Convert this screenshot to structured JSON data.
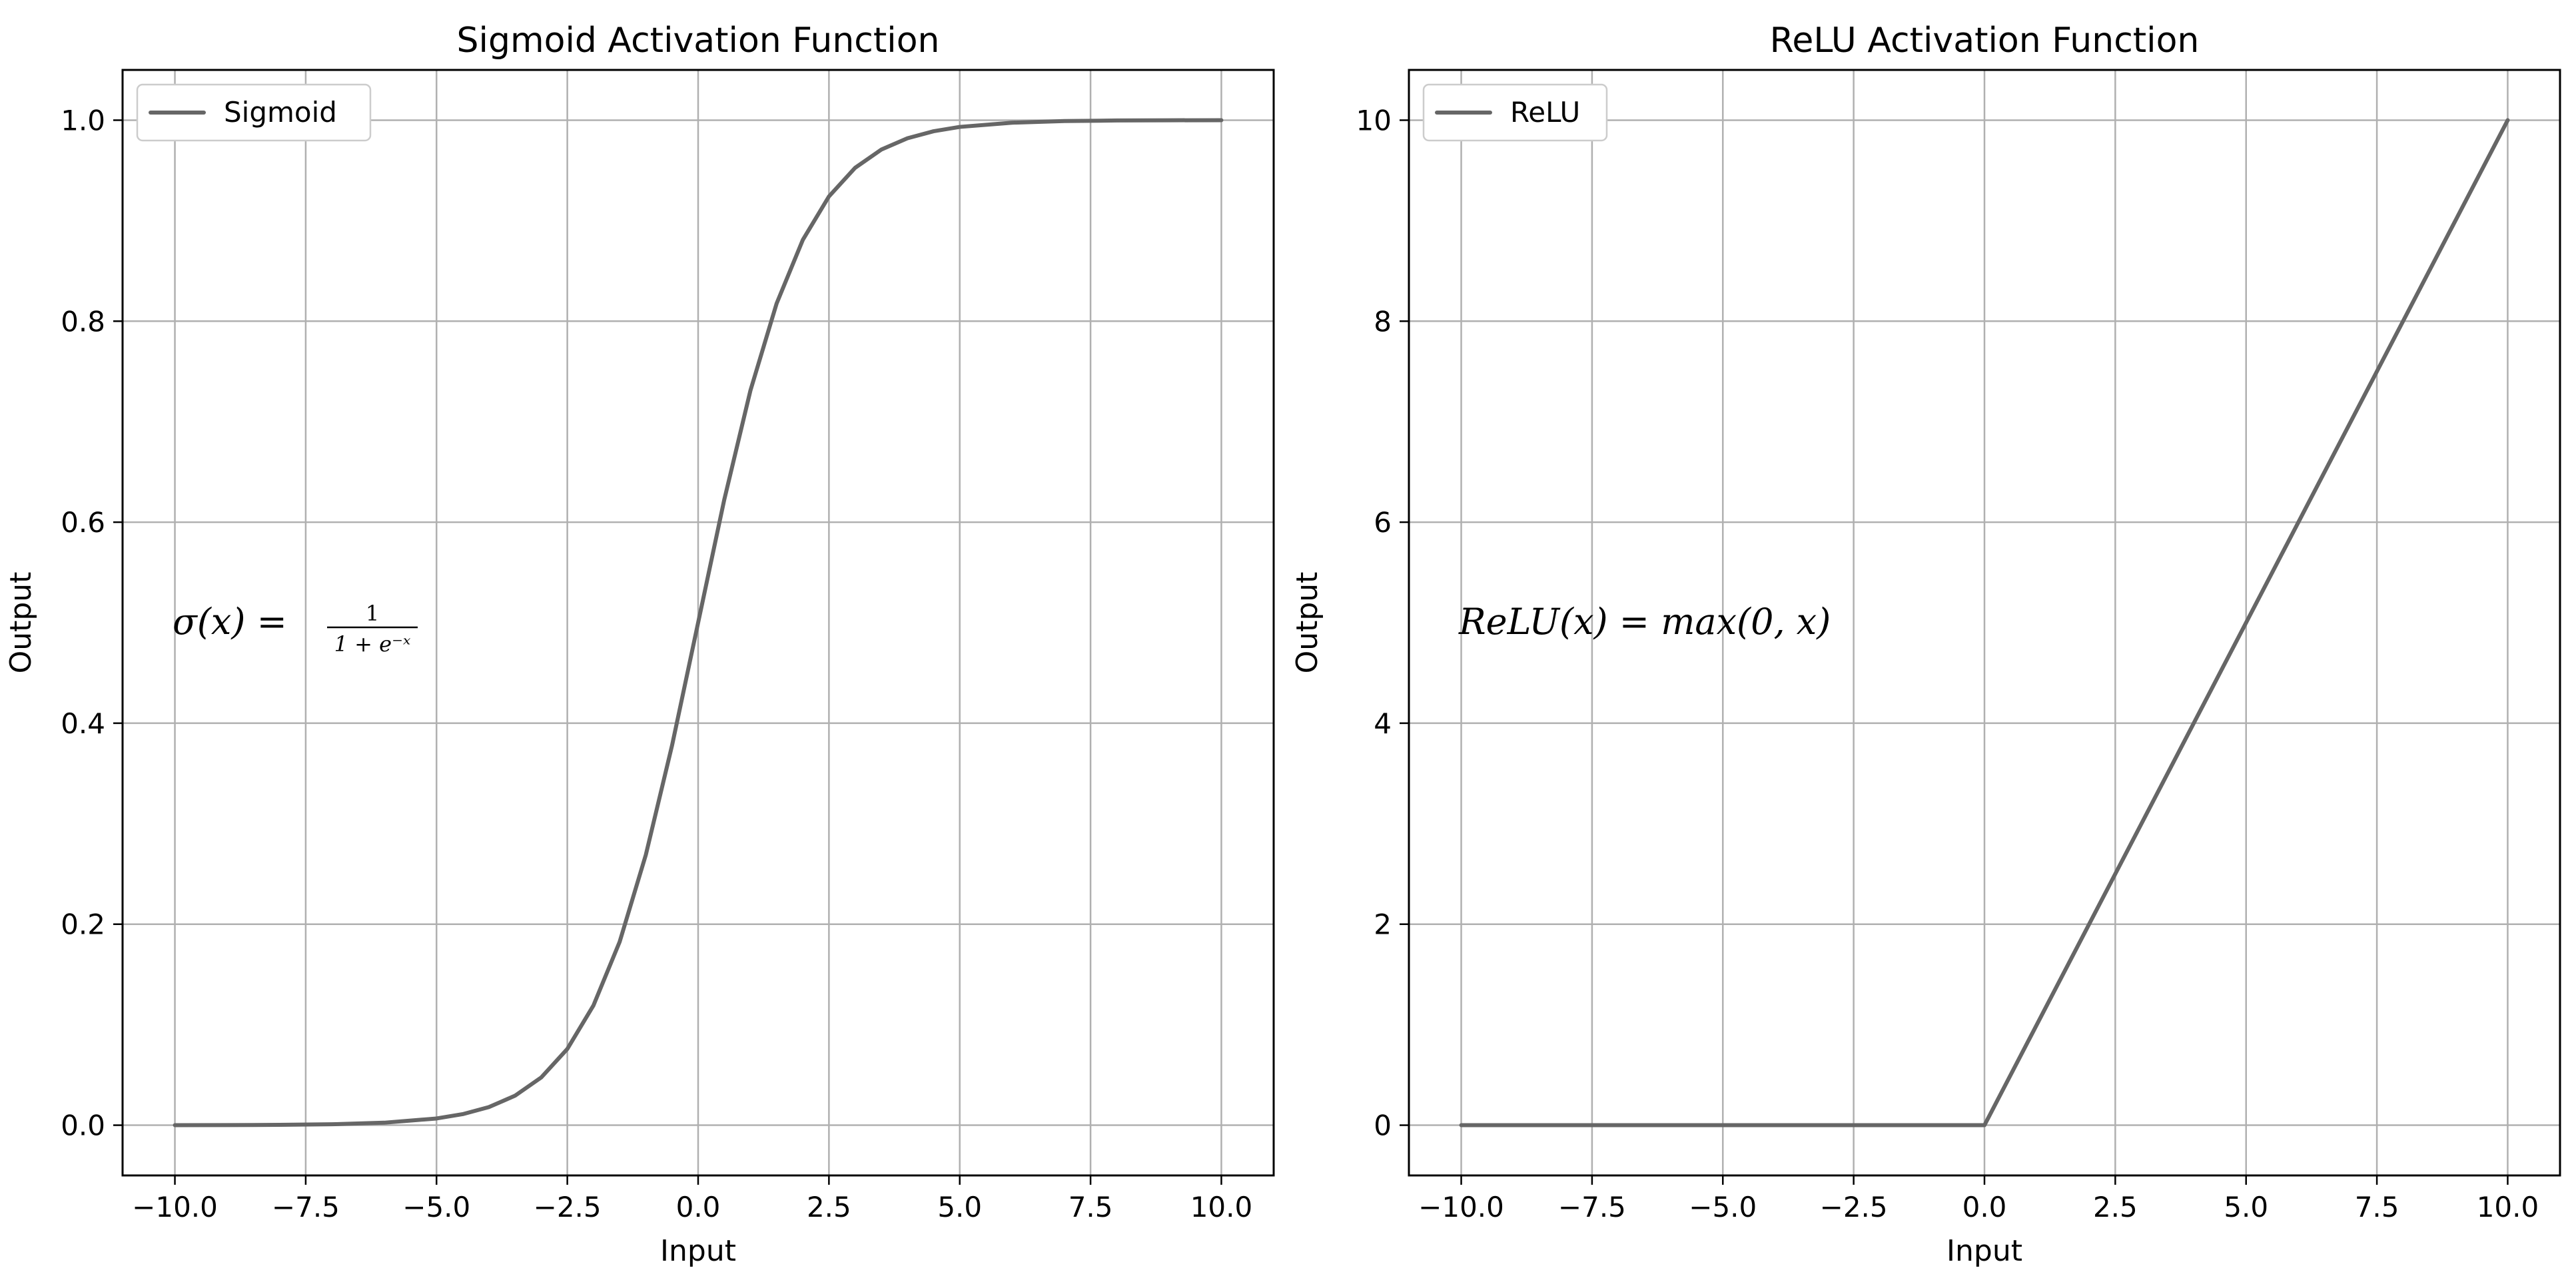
{
  "chart_data": [
    {
      "id": "sigmoid",
      "type": "line",
      "title": "Sigmoid Activation Function",
      "xlabel": "Input",
      "ylabel": "Output",
      "xlim": [
        -11,
        11
      ],
      "ylim": [
        -0.05,
        1.05
      ],
      "xticks": [
        -10,
        -7.5,
        -5,
        -2.5,
        0,
        2.5,
        5,
        7.5,
        10
      ],
      "xtick_labels": [
        "−10.0",
        "−7.5",
        "−5.0",
        "−2.5",
        "0.0",
        "2.5",
        "5.0",
        "7.5",
        "10.0"
      ],
      "yticks": [
        0,
        0.2,
        0.4,
        0.6,
        0.8,
        1.0
      ],
      "ytick_labels": [
        "0.0",
        "0.2",
        "0.4",
        "0.6",
        "0.8",
        "1.0"
      ],
      "grid": true,
      "legend_position": "top-left",
      "color": "#666666",
      "series": [
        {
          "name": "Sigmoid",
          "x": [
            -10,
            -9,
            -8,
            -7,
            -6,
            -5,
            -4.5,
            -4,
            -3.5,
            -3,
            -2.5,
            -2,
            -1.5,
            -1,
            -0.5,
            0,
            0.5,
            1,
            1.5,
            2,
            2.5,
            3,
            3.5,
            4,
            4.5,
            5,
            6,
            7,
            8,
            9,
            10
          ],
          "y": [
            4.54e-05,
            0.0001234,
            0.0003354,
            0.000911,
            0.002473,
            0.006693,
            0.01099,
            0.01799,
            0.02931,
            0.04743,
            0.07586,
            0.1192,
            0.1824,
            0.2689,
            0.3775,
            0.5,
            0.6225,
            0.7311,
            0.8176,
            0.8808,
            0.9241,
            0.9526,
            0.9707,
            0.982,
            0.989,
            0.9933,
            0.9975,
            0.9991,
            0.9997,
            0.9999,
            1.0
          ]
        }
      ],
      "annotation": {
        "main": "σ(x) =",
        "numerator": "1",
        "denominator": "1 + e⁻ˣ"
      }
    },
    {
      "id": "relu",
      "type": "line",
      "title": "ReLU Activation Function",
      "xlabel": "Input",
      "ylabel": "Output",
      "xlim": [
        -11,
        11
      ],
      "ylim": [
        -0.5,
        10.5
      ],
      "xticks": [
        -10,
        -7.5,
        -5,
        -2.5,
        0,
        2.5,
        5,
        7.5,
        10
      ],
      "xtick_labels": [
        "−10.0",
        "−7.5",
        "−5.0",
        "−2.5",
        "0.0",
        "2.5",
        "5.0",
        "7.5",
        "10.0"
      ],
      "yticks": [
        0,
        2,
        4,
        6,
        8,
        10
      ],
      "ytick_labels": [
        "0",
        "2",
        "4",
        "6",
        "8",
        "10"
      ],
      "grid": true,
      "legend_position": "top-left",
      "color": "#666666",
      "series": [
        {
          "name": "ReLU",
          "x": [
            -10,
            -5,
            -0.1,
            0,
            0.1,
            2.5,
            5,
            7.5,
            10
          ],
          "y": [
            0,
            0,
            0,
            0,
            0.1,
            2.5,
            5,
            7.5,
            10
          ]
        }
      ],
      "annotation": {
        "main": "ReLU(x) = max(0, x)"
      }
    }
  ]
}
